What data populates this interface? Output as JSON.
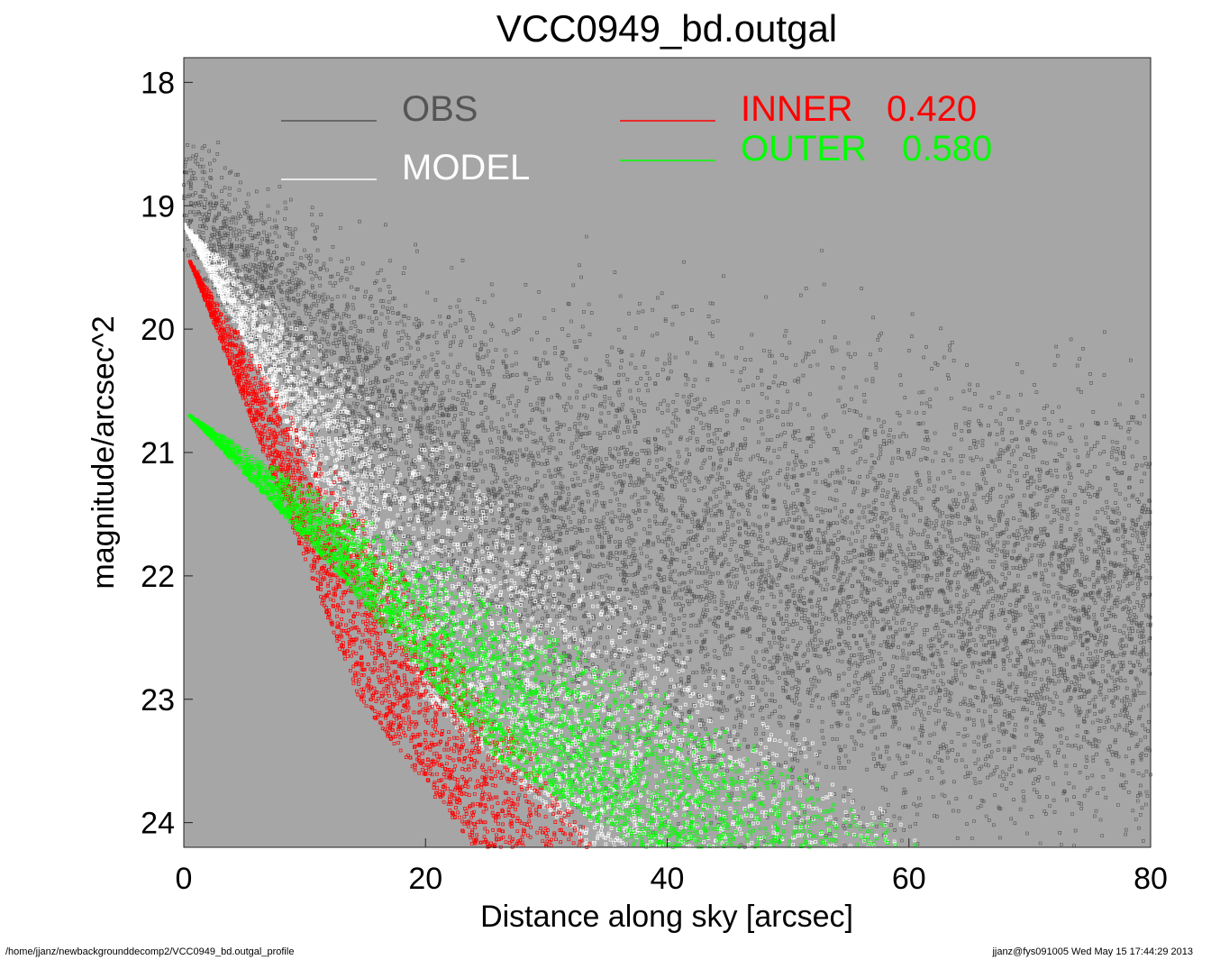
{
  "chart_data": {
    "type": "scatter",
    "title": "VCC0949_bd.outgal",
    "xlabel": "Distance along sky [arcsec]",
    "ylabel": "magnitude/arcsec^2",
    "xlim": [
      0,
      80
    ],
    "ylim": [
      24.2,
      17.8
    ],
    "y_inverted": true,
    "grid": false,
    "legend_placement": "top",
    "x_ticks": [
      "0",
      "20",
      "40",
      "60",
      "80"
    ],
    "x_tick_values": [
      0,
      20,
      40,
      60,
      80
    ],
    "y_ticks": [
      "18",
      "19",
      "20",
      "21",
      "22",
      "23",
      "24"
    ],
    "y_tick_values": [
      18,
      19,
      20,
      21,
      22,
      23,
      24
    ],
    "colors": {
      "background": "#a6a6a6",
      "obs": "#555555",
      "model": "#ffffff",
      "inner": "#ff0000",
      "outer": "#00ff00"
    },
    "legend": [
      {
        "label": "OBS",
        "value": "",
        "color": "#555555"
      },
      {
        "label": "MODEL",
        "value": "",
        "color": "#ffffff"
      },
      {
        "label": "INNER",
        "value": "0.420",
        "color": "#ff0000"
      },
      {
        "label": "OUTER",
        "value": "0.580",
        "color": "#00ff00"
      }
    ],
    "series": [
      {
        "name": "OBS",
        "kind": "noisy-profile",
        "curve": [
          [
            0,
            18.95
          ],
          [
            10,
            20.0
          ],
          [
            20,
            21.0
          ],
          [
            30,
            21.7
          ],
          [
            40,
            21.85
          ],
          [
            60,
            22.25
          ],
          [
            80,
            22.35
          ]
        ],
        "scatter_mag": 0.9
      },
      {
        "name": "MODEL",
        "kind": "profile-band",
        "upper": [
          [
            0,
            19.15
          ],
          [
            62,
            24.15
          ]
        ],
        "lower": [
          [
            0,
            19.15
          ],
          [
            20,
            23.0
          ],
          [
            33.5,
            24.2
          ]
        ]
      },
      {
        "name": "INNER",
        "kind": "profile-band",
        "upper": [
          [
            0.5,
            19.45
          ],
          [
            34.5,
            24.2
          ]
        ],
        "lower": [
          [
            0.5,
            19.45
          ],
          [
            14.5,
            23.0
          ],
          [
            24,
            24.2
          ]
        ]
      },
      {
        "name": "OUTER",
        "kind": "profile-band",
        "upper": [
          [
            0.5,
            20.7
          ],
          [
            62,
            24.2
          ]
        ],
        "lower": [
          [
            0.5,
            20.7
          ],
          [
            12,
            21.9
          ],
          [
            26,
            23.5
          ],
          [
            37.5,
            24.2
          ]
        ]
      }
    ]
  },
  "footer": {
    "left": "/home/jjanz/newbackgrounddecomp2/VCC0949_bd.outgal_profile",
    "right": "jjanz@fys091005  Wed May 15 17:44:29 2013"
  }
}
